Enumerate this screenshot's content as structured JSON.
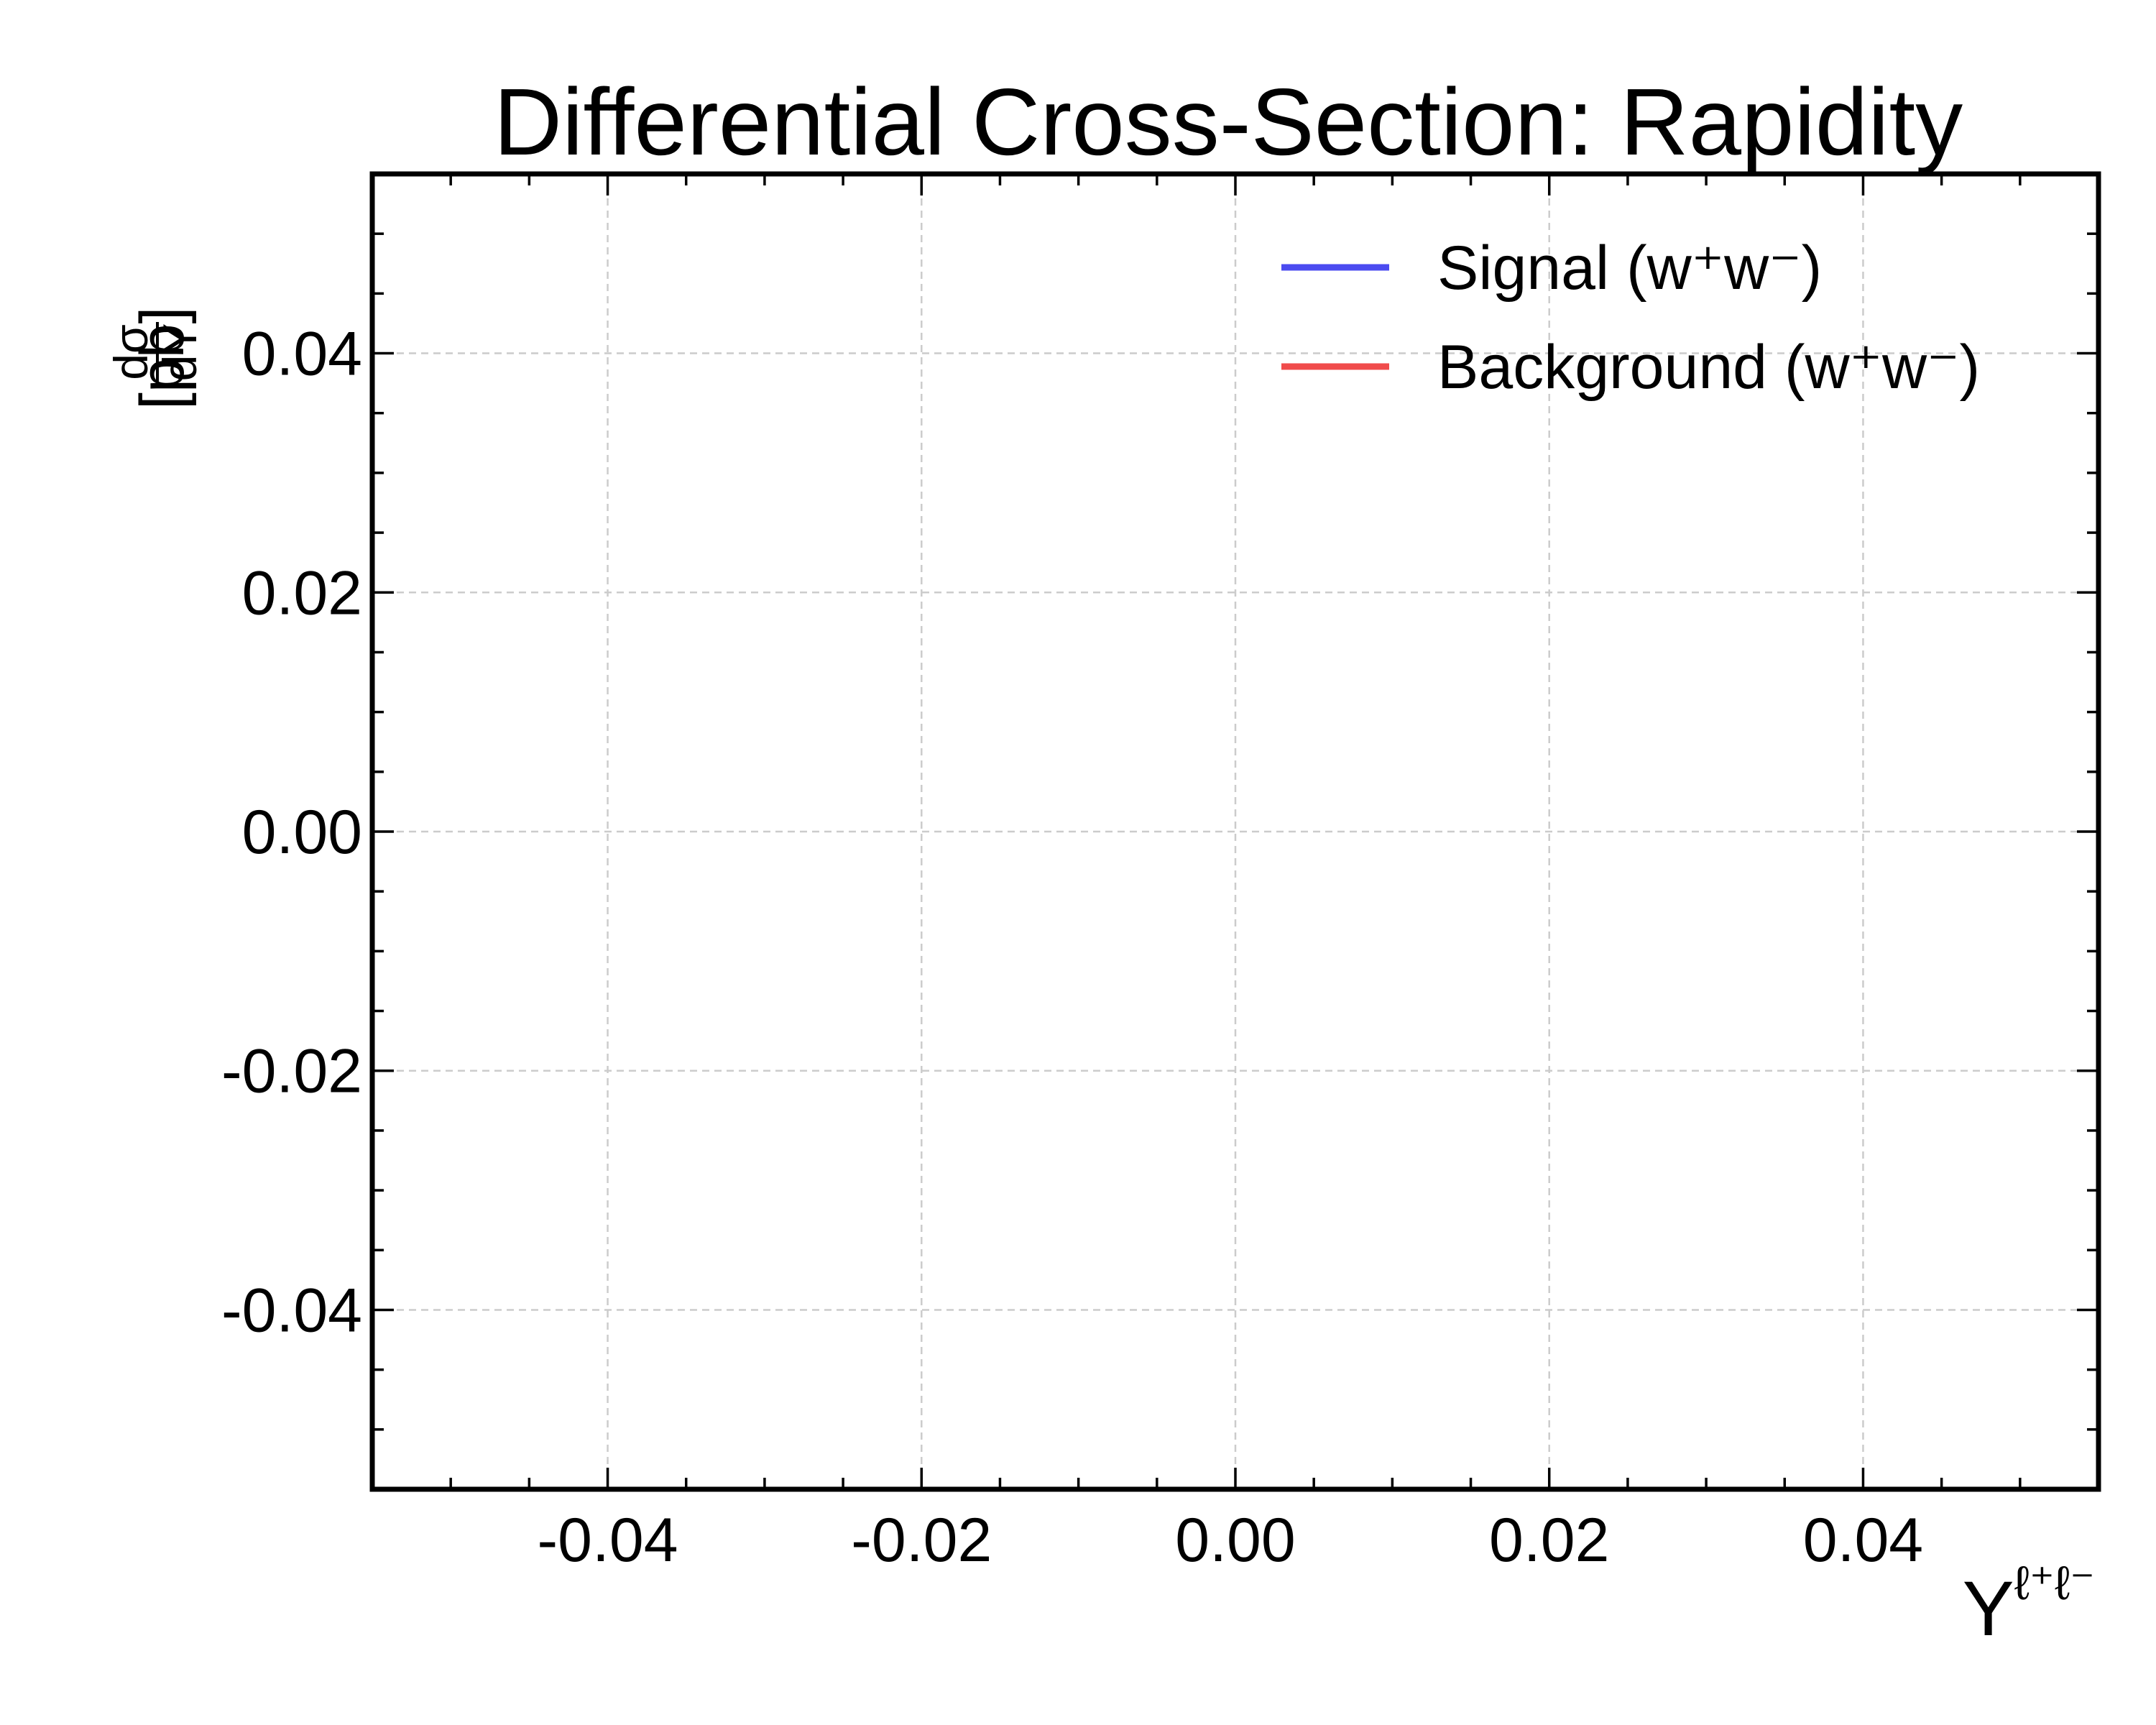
{
  "chart_data": {
    "type": "line",
    "title": "Differential Cross-Section: Rapidity",
    "xlabel": "Y",
    "xlabel_sup": "ℓ⁺ℓ⁻",
    "ylabel_num": "dσ",
    "ylabel_den": "dY",
    "ylabel_unit": "[pb]",
    "xlim": [
      -0.055,
      0.055
    ],
    "ylim": [
      -0.055,
      0.055
    ],
    "xticks": [
      -0.04,
      -0.02,
      0.0,
      0.02,
      0.04
    ],
    "xtick_labels": [
      "-0.04",
      "-0.02",
      "0.00",
      "0.02",
      "0.04"
    ],
    "yticks": [
      -0.04,
      -0.02,
      0.0,
      0.02,
      0.04
    ],
    "ytick_labels": [
      "-0.04",
      "-0.02",
      "0.00",
      "0.02",
      "0.04"
    ],
    "minor_step": 0.005,
    "grid": true,
    "legend_position": "top-right",
    "series": [
      {
        "name": "Signal (w⁺w⁻)",
        "color": "#4b4bf0",
        "x": [],
        "y": []
      },
      {
        "name": "Background (w⁺w⁻)",
        "color": "#f04b4b",
        "x": [],
        "y": []
      }
    ]
  }
}
